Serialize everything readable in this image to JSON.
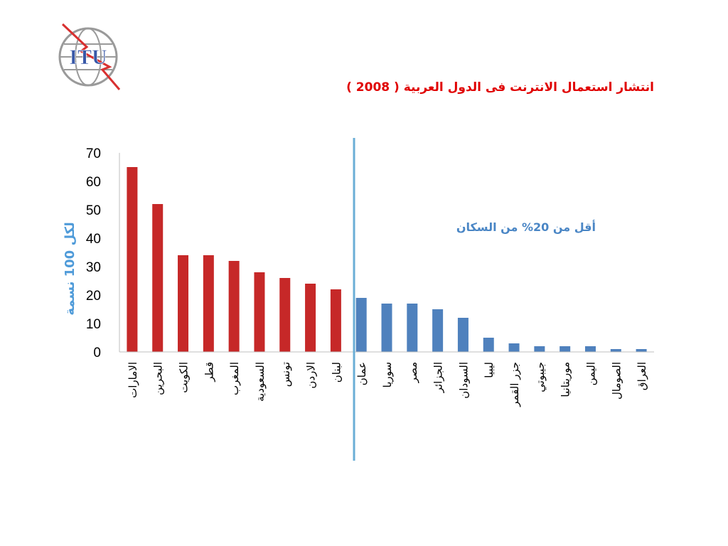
{
  "slide": {
    "logo_text": "ITU",
    "title": "انتشار استعمال الانترنت فى الدول العربية ( 2008 )"
  },
  "colors": {
    "title": "#e00000",
    "above_threshold_bar": "#c62828",
    "below_threshold_bar": "#4f81bd",
    "divider": "#6aaed6",
    "ylabel": "#4f9bd9",
    "annotation": "#4a86c5",
    "logo_blue": "#3858a8",
    "logo_red": "#d83030"
  },
  "chart_data": {
    "type": "bar",
    "title": "انتشار استعمال الانترنت فى الدول العربية ( 2008 )",
    "xlabel": "",
    "ylabel": "لكل 100 نسمة",
    "ylim": [
      0,
      70
    ],
    "yticks": [
      0,
      10,
      20,
      30,
      40,
      50,
      60,
      70
    ],
    "grid": false,
    "categories": [
      "الامارات",
      "البحرين",
      "الكويت",
      "قطر",
      "المغرب",
      "السعودية",
      "تونس",
      "الاردن",
      "لبنان",
      "عمان",
      "سوريا",
      "مصر",
      "الجزائر",
      "السودان",
      "ليبيا",
      "جزر القمر",
      "جيبوتي",
      "موريتانيا",
      "اليمن",
      "الصومال",
      "العراق"
    ],
    "values": [
      65,
      52,
      34,
      34,
      32,
      28,
      26,
      24,
      22,
      19,
      17,
      17,
      15,
      12,
      5,
      3,
      2,
      2,
      2,
      1,
      1
    ],
    "threshold": 20,
    "annotation": "أقل من 20% من السكان"
  }
}
